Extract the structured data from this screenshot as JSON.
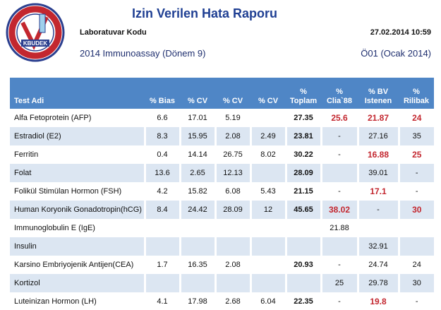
{
  "header": {
    "logo": "KBUDEK",
    "title": "Izin Verilen Hata Raporu",
    "lab_label": "Laboratuvar Kodu",
    "datetime": "27.02.2014 10:59",
    "program": "2014 Immunoassay (Dönem 9)",
    "period": "Ö01 (Ocak 2014)"
  },
  "table": {
    "header_color": "#4f86c6",
    "stripe_color": "#dce6f2",
    "highlight_color": "#c3272f",
    "bold_columns": [
      5
    ],
    "columns": [
      [
        "Test Adi"
      ],
      [
        "% Bias"
      ],
      [
        "% CV"
      ],
      [
        "% CV"
      ],
      [
        "% CV"
      ],
      [
        "%",
        "Toplam"
      ],
      [
        "%",
        "Clia`88"
      ],
      [
        "% BV",
        "Istenen"
      ],
      [
        "%",
        "Rilibak"
      ]
    ],
    "rows": [
      {
        "cells": [
          "Alfa Fetoprotein (AFP)",
          6.6,
          17.01,
          5.19,
          null,
          27.35,
          25.6,
          21.87,
          24
        ],
        "red": [
          6,
          7,
          8
        ]
      },
      {
        "cells": [
          "Estradiol (E2)",
          8.3,
          15.95,
          2.08,
          2.49,
          23.81,
          "-",
          27.16,
          35
        ],
        "red": []
      },
      {
        "cells": [
          "Ferritin",
          0.4,
          14.14,
          26.75,
          8.02,
          30.22,
          "-",
          16.88,
          25
        ],
        "red": [
          7,
          8
        ]
      },
      {
        "cells": [
          "Folat",
          13.6,
          2.65,
          12.13,
          null,
          28.09,
          null,
          39.01,
          "-"
        ],
        "red": []
      },
      {
        "cells": [
          "Folikül Stimülan Hormon (FSH)",
          4.2,
          15.82,
          6.08,
          5.43,
          21.15,
          "-",
          17.1,
          "-"
        ],
        "red": [
          7
        ]
      },
      {
        "cells": [
          "Human Koryonik Gonadotropin(hCG)",
          8.4,
          24.42,
          28.09,
          12,
          45.65,
          38.02,
          "-",
          30
        ],
        "red": [
          6,
          8
        ]
      },
      {
        "cells": [
          "Immunoglobulin E (IgE)",
          null,
          null,
          null,
          null,
          null,
          21.88,
          null,
          null
        ],
        "red": []
      },
      {
        "cells": [
          "Insulin",
          null,
          null,
          null,
          null,
          null,
          null,
          32.91,
          null
        ],
        "red": []
      },
      {
        "cells": [
          "Karsino Embriyojenik Antijen(CEA)",
          1.7,
          16.35,
          2.08,
          null,
          20.93,
          "-",
          24.74,
          24
        ],
        "red": []
      },
      {
        "cells": [
          "Kortizol",
          null,
          null,
          null,
          null,
          null,
          25,
          29.78,
          30
        ],
        "red": []
      },
      {
        "cells": [
          "Luteinizan Hormon (LH)",
          4.1,
          17.98,
          2.68,
          6.04,
          22.35,
          "-",
          19.8,
          "-"
        ],
        "red": [
          7
        ]
      }
    ]
  }
}
